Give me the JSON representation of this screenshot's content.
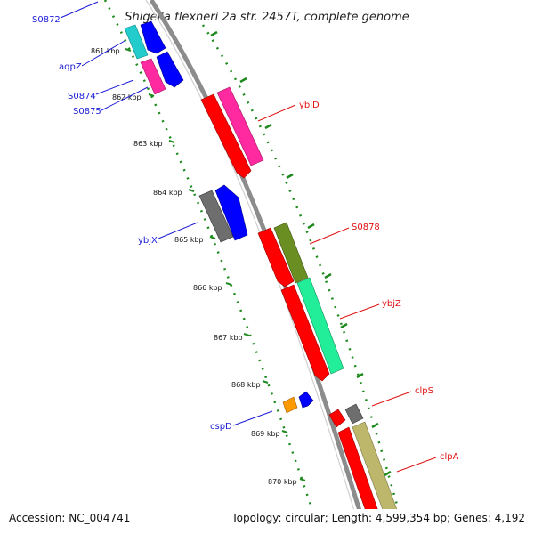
{
  "header": {
    "title": "Shigella flexneri 2a str. 2457T, complete genome"
  },
  "footer": {
    "accession": "Accession: NC_004741",
    "summary": "Topology: circular; Length: 4,599,354 bp; Genes: 4,192"
  },
  "scale": {
    "ticks": [
      "861 kbp",
      "862 kbp",
      "863 kbp",
      "864 kbp",
      "865 kbp",
      "866 kbp",
      "867 kbp",
      "868 kbp",
      "869 kbp",
      "870 kbp"
    ]
  },
  "genes": {
    "left": [
      "S0872",
      "aqpZ",
      "S0874",
      "S0875",
      "ybjX",
      "cspD"
    ],
    "right": [
      "ybjD",
      "S0878",
      "ybjZ",
      "clpS",
      "clpA"
    ]
  },
  "colors": {
    "backbone": "#8c8c8c",
    "tick_dots": "#1f8a1f",
    "left_label": "#1a1ad6",
    "right_label": "#e01010",
    "red": "#ff0000",
    "magenta": "#ff2aa0",
    "blue": "#0000ff",
    "cyan": "#22cccc",
    "gray": "#6e6e6e",
    "olive": "#6b8e23",
    "mint": "#22ee99",
    "orange": "#ff9900",
    "khaki": "#bdb76b"
  }
}
